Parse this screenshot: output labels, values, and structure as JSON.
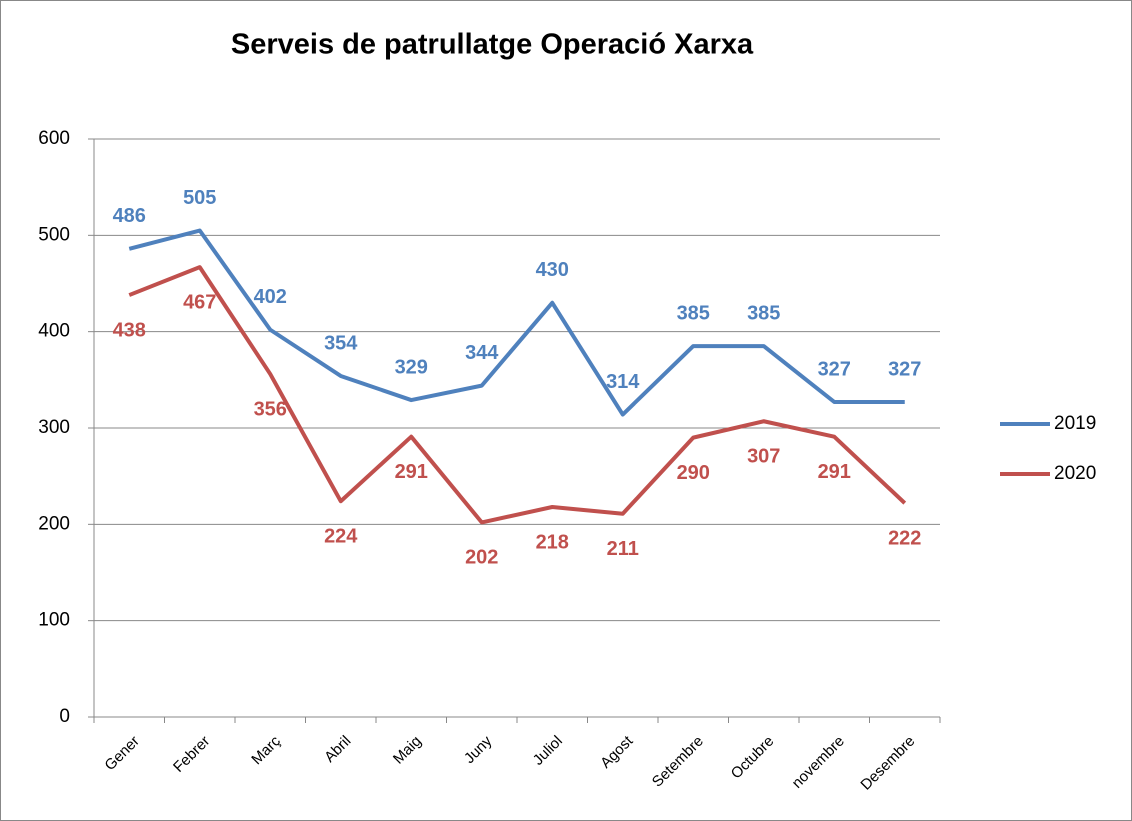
{
  "chart_data": {
    "type": "line",
    "title": "Serveis de patrullatge Operació Xarxa",
    "categories": [
      "Gener",
      "Febrer",
      "Març",
      "Abril",
      "Maig",
      "Juny",
      "Juliol",
      "Agost",
      "Setembre",
      "Octubre",
      "novembre",
      "Desembre"
    ],
    "series": [
      {
        "name": "2019",
        "color": "#4f81bd",
        "values": [
          486,
          505,
          402,
          354,
          329,
          344,
          430,
          314,
          385,
          385,
          327,
          327
        ]
      },
      {
        "name": "2020",
        "color": "#c0504d",
        "values": [
          438,
          467,
          356,
          224,
          291,
          202,
          218,
          211,
          290,
          307,
          291,
          222
        ]
      }
    ],
    "ylim": [
      0,
      600
    ],
    "yticks": [
      0,
      100,
      200,
      300,
      400,
      500,
      600
    ],
    "grid": true,
    "legend": "right"
  }
}
